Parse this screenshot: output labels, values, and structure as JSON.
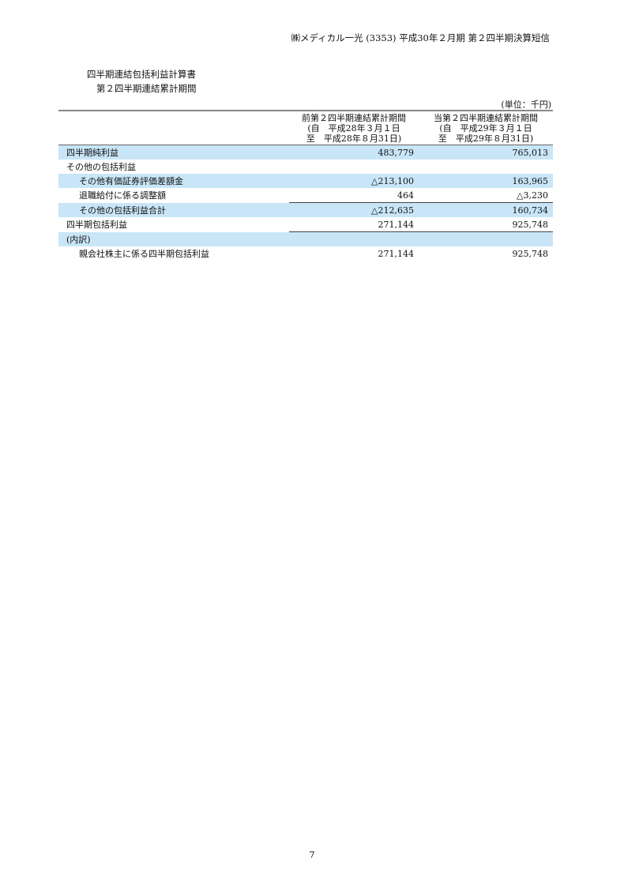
{
  "header": "㈱メディカル一光 (3353) 平成30年２月期 第２四半期決算短信",
  "title": "四半期連結包括利益計算書",
  "subtitle": "第２四半期連結累計期間",
  "unit": "(単位：千円)",
  "columns": [
    {
      "line1": "前第２四半期連結累計期間",
      "line2": "(自　平成28年３月１日",
      "line3": "至　平成28年８月31日)"
    },
    {
      "line1": "当第２四半期連結累計期間",
      "line2": "(自　平成29年３月１日",
      "line3": "至　平成29年８月31日)"
    }
  ],
  "rows": [
    {
      "label": "四半期純利益",
      "prev": "483,779",
      "curr": "765,013"
    },
    {
      "label": "その他の包括利益",
      "prev": "",
      "curr": ""
    },
    {
      "label": "その他有価証券評価差額金",
      "prev": "△213,100",
      "curr": "163,965"
    },
    {
      "label": "退職給付に係る調整額",
      "prev": "464",
      "curr": "△3,230"
    },
    {
      "label": "その他の包括利益合計",
      "prev": "△212,635",
      "curr": "160,734"
    },
    {
      "label": "四半期包括利益",
      "prev": "271,144",
      "curr": "925,748"
    },
    {
      "label": "(内訳)",
      "prev": "",
      "curr": ""
    },
    {
      "label": "親会社株主に係る四半期包括利益",
      "prev": "271,144",
      "curr": "925,748"
    }
  ],
  "page_number": "7",
  "highlight_color": "#c9e6f8"
}
